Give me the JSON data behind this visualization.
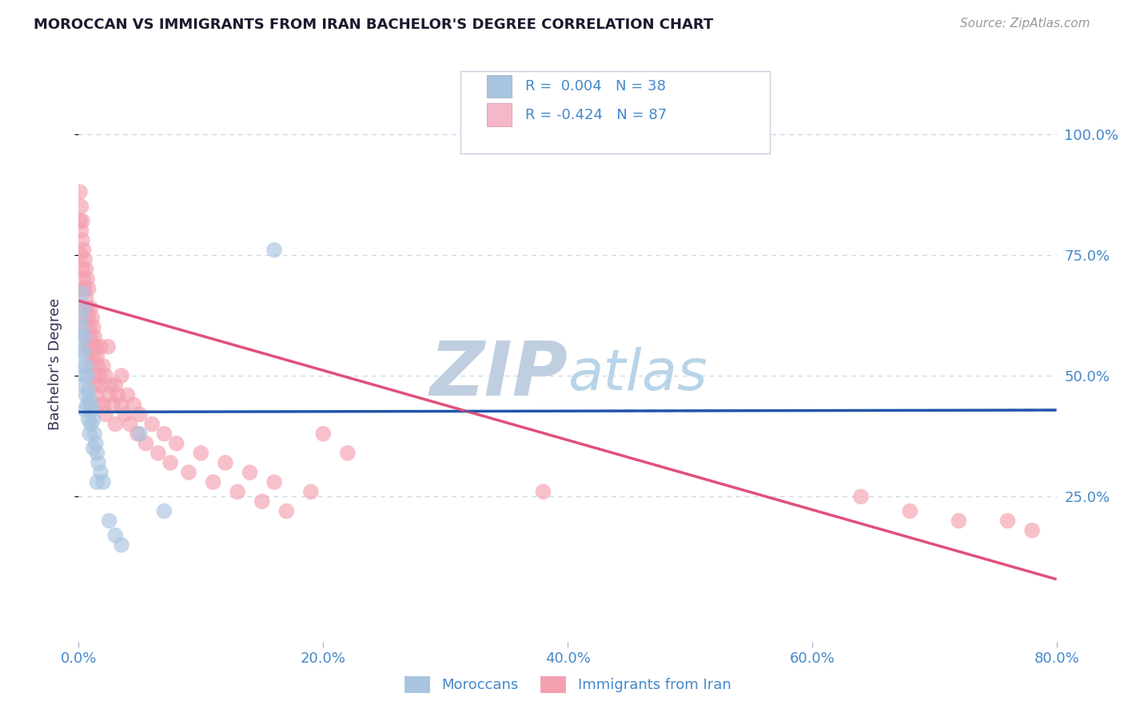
{
  "title": "MOROCCAN VS IMMIGRANTS FROM IRAN BACHELOR'S DEGREE CORRELATION CHART",
  "source_text": "Source: ZipAtlas.com",
  "ylabel": "Bachelor's Degree",
  "xlim": [
    0.0,
    0.8
  ],
  "ylim": [
    -0.05,
    1.1
  ],
  "xtick_labels": [
    "0.0%",
    "20.0%",
    "40.0%",
    "60.0%",
    "80.0%"
  ],
  "xtick_vals": [
    0.0,
    0.2,
    0.4,
    0.6,
    0.8
  ],
  "ytick_labels": [
    "25.0%",
    "50.0%",
    "75.0%",
    "100.0%"
  ],
  "ytick_vals": [
    0.25,
    0.5,
    0.75,
    1.0
  ],
  "legend_labels": [
    "Moroccans",
    "Immigrants from Iran"
  ],
  "blue_color": "#a8c4e0",
  "pink_color": "#f4a0b0",
  "blue_line_color": "#2255aa",
  "pink_line_color": "#e0507a",
  "legend_box_blue": "#a8c4e0",
  "legend_box_pink": "#f4b8c8",
  "R_blue": 0.004,
  "N_blue": 38,
  "R_pink": -0.424,
  "N_pink": 87,
  "grid_color": "#c8d4e8",
  "background_color": "#ffffff",
  "title_color": "#1a1a2e",
  "axis_label_color": "#333355",
  "tick_color": "#4488cc",
  "blue_line_intercept": 0.425,
  "blue_line_slope": 0.005,
  "pink_line_intercept": 0.655,
  "pink_line_slope": -0.72,
  "blue_scatter": [
    [
      0.001,
      0.58
    ],
    [
      0.002,
      0.62
    ],
    [
      0.002,
      0.55
    ],
    [
      0.003,
      0.67
    ],
    [
      0.003,
      0.6
    ],
    [
      0.003,
      0.52
    ],
    [
      0.004,
      0.64
    ],
    [
      0.004,
      0.55
    ],
    [
      0.004,
      0.48
    ],
    [
      0.005,
      0.58
    ],
    [
      0.005,
      0.5
    ],
    [
      0.005,
      0.43
    ],
    [
      0.006,
      0.52
    ],
    [
      0.006,
      0.46
    ],
    [
      0.007,
      0.5
    ],
    [
      0.007,
      0.44
    ],
    [
      0.008,
      0.47
    ],
    [
      0.008,
      0.41
    ],
    [
      0.009,
      0.45
    ],
    [
      0.009,
      0.38
    ],
    [
      0.01,
      0.44
    ],
    [
      0.01,
      0.4
    ],
    [
      0.011,
      0.43
    ],
    [
      0.012,
      0.41
    ],
    [
      0.012,
      0.35
    ],
    [
      0.013,
      0.38
    ],
    [
      0.014,
      0.36
    ],
    [
      0.015,
      0.34
    ],
    [
      0.015,
      0.28
    ],
    [
      0.016,
      0.32
    ],
    [
      0.018,
      0.3
    ],
    [
      0.02,
      0.28
    ],
    [
      0.025,
      0.2
    ],
    [
      0.03,
      0.17
    ],
    [
      0.16,
      0.76
    ],
    [
      0.035,
      0.15
    ],
    [
      0.05,
      0.38
    ],
    [
      0.07,
      0.22
    ]
  ],
  "pink_scatter": [
    [
      0.001,
      0.88
    ],
    [
      0.001,
      0.82
    ],
    [
      0.002,
      0.8
    ],
    [
      0.002,
      0.75
    ],
    [
      0.002,
      0.85
    ],
    [
      0.003,
      0.78
    ],
    [
      0.003,
      0.72
    ],
    [
      0.003,
      0.82
    ],
    [
      0.004,
      0.76
    ],
    [
      0.004,
      0.7
    ],
    [
      0.004,
      0.68
    ],
    [
      0.005,
      0.74
    ],
    [
      0.005,
      0.68
    ],
    [
      0.005,
      0.64
    ],
    [
      0.005,
      0.6
    ],
    [
      0.006,
      0.72
    ],
    [
      0.006,
      0.66
    ],
    [
      0.006,
      0.62
    ],
    [
      0.007,
      0.7
    ],
    [
      0.007,
      0.64
    ],
    [
      0.007,
      0.58
    ],
    [
      0.008,
      0.68
    ],
    [
      0.008,
      0.62
    ],
    [
      0.008,
      0.56
    ],
    [
      0.009,
      0.6
    ],
    [
      0.009,
      0.55
    ],
    [
      0.01,
      0.64
    ],
    [
      0.01,
      0.58
    ],
    [
      0.01,
      0.52
    ],
    [
      0.011,
      0.62
    ],
    [
      0.011,
      0.56
    ],
    [
      0.012,
      0.6
    ],
    [
      0.012,
      0.54
    ],
    [
      0.013,
      0.58
    ],
    [
      0.013,
      0.5
    ],
    [
      0.014,
      0.56
    ],
    [
      0.014,
      0.48
    ],
    [
      0.015,
      0.54
    ],
    [
      0.015,
      0.46
    ],
    [
      0.016,
      0.52
    ],
    [
      0.016,
      0.44
    ],
    [
      0.017,
      0.5
    ],
    [
      0.018,
      0.56
    ],
    [
      0.018,
      0.48
    ],
    [
      0.02,
      0.52
    ],
    [
      0.02,
      0.44
    ],
    [
      0.022,
      0.5
    ],
    [
      0.022,
      0.42
    ],
    [
      0.024,
      0.56
    ],
    [
      0.025,
      0.46
    ],
    [
      0.026,
      0.48
    ],
    [
      0.028,
      0.44
    ],
    [
      0.03,
      0.48
    ],
    [
      0.03,
      0.4
    ],
    [
      0.032,
      0.46
    ],
    [
      0.035,
      0.44
    ],
    [
      0.035,
      0.5
    ],
    [
      0.038,
      0.42
    ],
    [
      0.04,
      0.46
    ],
    [
      0.042,
      0.4
    ],
    [
      0.045,
      0.44
    ],
    [
      0.048,
      0.38
    ],
    [
      0.05,
      0.42
    ],
    [
      0.055,
      0.36
    ],
    [
      0.06,
      0.4
    ],
    [
      0.065,
      0.34
    ],
    [
      0.07,
      0.38
    ],
    [
      0.075,
      0.32
    ],
    [
      0.08,
      0.36
    ],
    [
      0.09,
      0.3
    ],
    [
      0.1,
      0.34
    ],
    [
      0.11,
      0.28
    ],
    [
      0.12,
      0.32
    ],
    [
      0.13,
      0.26
    ],
    [
      0.14,
      0.3
    ],
    [
      0.15,
      0.24
    ],
    [
      0.16,
      0.28
    ],
    [
      0.17,
      0.22
    ],
    [
      0.19,
      0.26
    ],
    [
      0.2,
      0.38
    ],
    [
      0.22,
      0.34
    ],
    [
      0.38,
      0.26
    ],
    [
      0.64,
      0.25
    ],
    [
      0.68,
      0.22
    ],
    [
      0.72,
      0.2
    ],
    [
      0.76,
      0.2
    ],
    [
      0.78,
      0.18
    ]
  ],
  "watermark_zip": "ZIP",
  "watermark_atlas": "atlas",
  "watermark_color_zip": "#c0cfe0",
  "watermark_color_atlas": "#b8d4e8"
}
